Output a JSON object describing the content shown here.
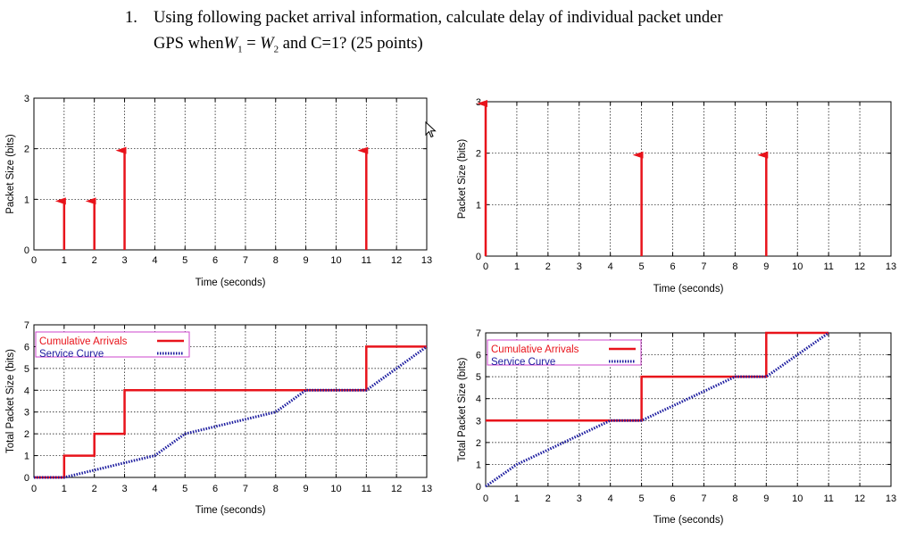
{
  "question": {
    "number": "1.",
    "line1": "Using following packet arrival information, calculate delay of individual packet under",
    "line2_prefix": "GPS when",
    "w_symbol": "W",
    "w1_sub": "1",
    "equals": " = ",
    "w2_sub": "2",
    "line2_suffix": "  and C=1? (25 points)"
  },
  "colors": {
    "arrival": "#e8131b",
    "service": "#1a1a9e",
    "legend_border": "#cc44cc"
  },
  "chart_data": [
    {
      "type": "arrow-stem",
      "xlabel": "Time (seconds)",
      "ylabel": "Packet Size (bits)",
      "xlim": [
        0,
        13
      ],
      "ylim": [
        0,
        3
      ],
      "x_ticks": [
        "0",
        "1",
        "2",
        "3",
        "4",
        "5",
        "6",
        "7",
        "8",
        "9",
        "10",
        "11",
        "12",
        "13"
      ],
      "y_ticks": [
        "0",
        "1",
        "2",
        "3"
      ],
      "grid": true,
      "points": [
        {
          "x": 1,
          "y": 1
        },
        {
          "x": 2,
          "y": 1
        },
        {
          "x": 3,
          "y": 2
        },
        {
          "x": 11,
          "y": 2
        }
      ]
    },
    {
      "type": "arrow-stem",
      "xlabel": "Time (seconds)",
      "ylabel": "Packet Size (bits)",
      "xlim": [
        0,
        13
      ],
      "ylim": [
        0,
        3
      ],
      "x_ticks": [
        "0",
        "1",
        "2",
        "3",
        "4",
        "5",
        "6",
        "7",
        "8",
        "9",
        "10",
        "11",
        "12",
        "13"
      ],
      "y_ticks": [
        "0",
        "1",
        "2",
        "3"
      ],
      "grid": true,
      "points": [
        {
          "x": 0,
          "y": 3
        },
        {
          "x": 5,
          "y": 2
        },
        {
          "x": 9,
          "y": 2
        }
      ]
    },
    {
      "type": "line",
      "xlabel": "Time (seconds)",
      "ylabel": "Total Packet Size (bits)",
      "xlim": [
        0,
        13
      ],
      "ylim": [
        0,
        7
      ],
      "x_ticks": [
        "0",
        "1",
        "2",
        "3",
        "4",
        "5",
        "6",
        "7",
        "8",
        "9",
        "10",
        "11",
        "12",
        "13"
      ],
      "y_ticks": [
        "0",
        "1",
        "2",
        "3",
        "4",
        "5",
        "6",
        "7"
      ],
      "grid": true,
      "legend_position": "top-left",
      "series": [
        {
          "name": "Cumulative Arrivals",
          "style": "solid-step",
          "points": [
            [
              0,
              0
            ],
            [
              1,
              0
            ],
            [
              1,
              1
            ],
            [
              2,
              1
            ],
            [
              2,
              2
            ],
            [
              3,
              2
            ],
            [
              3,
              4
            ],
            [
              11,
              4
            ],
            [
              11,
              6
            ],
            [
              13,
              6
            ]
          ]
        },
        {
          "name": "Service Curve",
          "style": "dotted",
          "points": [
            [
              0,
              0
            ],
            [
              1,
              0
            ],
            [
              3,
              0.67
            ],
            [
              4,
              1
            ],
            [
              5,
              2
            ],
            [
              8,
              3
            ],
            [
              9,
              4
            ],
            [
              11,
              4
            ],
            [
              13,
              6
            ]
          ]
        }
      ]
    },
    {
      "type": "line",
      "xlabel": "Time (seconds)",
      "ylabel": "Total Packet Size (bits)",
      "xlim": [
        0,
        13
      ],
      "ylim": [
        0,
        7
      ],
      "x_ticks": [
        "0",
        "1",
        "2",
        "3",
        "4",
        "5",
        "6",
        "7",
        "8",
        "9",
        "10",
        "11",
        "12",
        "13"
      ],
      "y_ticks": [
        "0",
        "1",
        "2",
        "3",
        "4",
        "5",
        "6",
        "7"
      ],
      "grid": true,
      "legend_position": "top-left",
      "series": [
        {
          "name": "Cumulative Arrivals",
          "style": "solid-step",
          "points": [
            [
              0,
              3
            ],
            [
              5,
              3
            ],
            [
              5,
              5
            ],
            [
              9,
              5
            ],
            [
              9,
              7
            ],
            [
              11,
              7
            ]
          ]
        },
        {
          "name": "Service Curve",
          "style": "dotted",
          "points": [
            [
              0,
              0
            ],
            [
              1,
              1
            ],
            [
              4,
              3
            ],
            [
              5,
              3
            ],
            [
              8,
              5
            ],
            [
              9,
              5
            ],
            [
              11,
              7
            ]
          ]
        }
      ]
    }
  ]
}
